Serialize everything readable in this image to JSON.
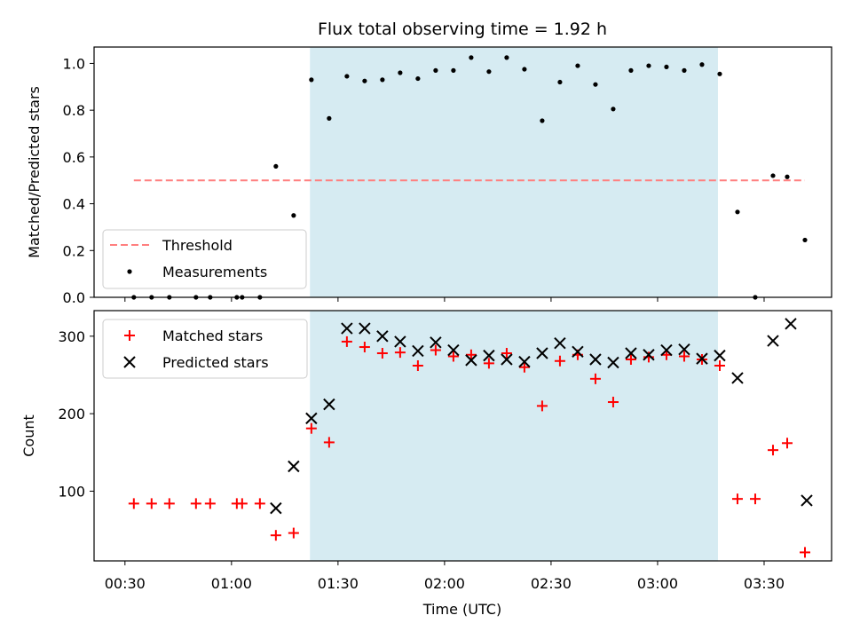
{
  "chart_data": {
    "type": "scatter",
    "title": "Flux total observing time = 1.92 h",
    "xlabel": "Time (UTC)",
    "x_ticks": [
      "00:30",
      "01:00",
      "01:30",
      "02:00",
      "02:30",
      "03:00",
      "03:30"
    ],
    "x_tick_minutes": [
      30,
      60,
      90,
      120,
      150,
      180,
      210
    ],
    "xlim_minutes": [
      21.3,
      229.0
    ],
    "shaded_span_minutes": [
      82.1,
      197.0
    ],
    "shade_color": "#add8e6",
    "panels": [
      {
        "name": "ratio",
        "ylabel": "Matched/Predicted stars",
        "ylim": [
          0.0,
          1.07
        ],
        "y_ticks": [
          0.0,
          0.2,
          0.4,
          0.6,
          0.8,
          1.0
        ],
        "y_tick_labels": [
          "0.0",
          "0.2",
          "0.4",
          "0.6",
          "0.8",
          "1.0"
        ],
        "legend": {
          "position": "lower left",
          "entries": [
            "Threshold",
            "Measurements"
          ]
        },
        "threshold": {
          "name": "Threshold",
          "y": 0.5,
          "x_range": [
            32.5,
            221.5
          ],
          "color": "#ff7f7f",
          "style": "dashed"
        },
        "series": [
          {
            "name": "Measurements",
            "marker": "dot",
            "color": "#000000",
            "x": [
              32.5,
              37.5,
              42.5,
              50.0,
              54.0,
              61.5,
              63.0,
              68.0,
              72.5,
              77.5,
              82.5,
              87.5,
              92.5,
              97.5,
              102.5,
              107.5,
              112.5,
              117.5,
              122.5,
              127.5,
              132.5,
              137.5,
              142.5,
              147.5,
              152.5,
              157.5,
              162.5,
              167.5,
              172.5,
              177.5,
              182.5,
              187.5,
              192.5,
              197.5,
              202.5,
              207.5,
              212.5,
              216.5,
              221.5
            ],
            "y": [
              0.0,
              0.0,
              0.0,
              0.0,
              0.0,
              0.0,
              0.0,
              0.0,
              0.56,
              0.35,
              0.93,
              0.765,
              0.945,
              0.925,
              0.93,
              0.96,
              0.935,
              0.97,
              0.97,
              1.025,
              0.965,
              1.025,
              0.975,
              0.755,
              0.92,
              0.99,
              0.91,
              0.805,
              0.97,
              0.99,
              0.985,
              0.97,
              0.995,
              0.955,
              0.365,
              0.0,
              0.52,
              0.515,
              0.245
            ]
          }
        ]
      },
      {
        "name": "count",
        "ylabel": "Count",
        "ylim": [
          10,
          333
        ],
        "y_ticks": [
          100,
          200,
          300
        ],
        "y_tick_labels": [
          "100",
          "200",
          "300"
        ],
        "legend": {
          "position": "upper left",
          "entries": [
            "Matched stars",
            "Predicted stars"
          ]
        },
        "series": [
          {
            "name": "Matched stars",
            "marker": "plus",
            "color": "#ff0000",
            "x": [
              32.5,
              37.5,
              42.5,
              50.0,
              54.0,
              61.5,
              63.0,
              68.0,
              72.5,
              77.5,
              82.5,
              87.5,
              92.5,
              97.5,
              102.5,
              107.5,
              112.5,
              117.5,
              122.5,
              127.5,
              132.5,
              137.5,
              142.5,
              147.5,
              152.5,
              157.5,
              162.5,
              167.5,
              172.5,
              177.5,
              182.5,
              187.5,
              192.5,
              197.5,
              202.5,
              207.5,
              212.5,
              216.5,
              221.5
            ],
            "y": [
              84,
              84,
              84,
              84,
              84,
              84,
              84,
              84,
              43,
              46,
              181,
              163,
              293,
              286,
              278,
              279,
              262,
              282,
              274,
              276,
              265,
              278,
              260,
              210,
              268,
              276,
              245,
              215,
              270,
              273,
              276,
              274,
              270,
              262,
              90,
              90,
              153,
              162,
              21
            ]
          },
          {
            "name": "Predicted stars",
            "marker": "x",
            "color": "#000000",
            "x": [
              72.5,
              77.5,
              82.5,
              87.5,
              92.5,
              97.5,
              102.5,
              107.5,
              112.5,
              117.5,
              122.5,
              127.5,
              132.5,
              137.5,
              142.5,
              147.5,
              152.5,
              157.5,
              162.5,
              167.5,
              172.5,
              177.5,
              182.5,
              187.5,
              192.5,
              197.5,
              202.5,
              212.5,
              217.5,
              222.0
            ],
            "y": [
              78,
              132,
              194,
              212,
              310,
              310,
              300,
              293,
              281,
              292,
              282,
              269,
              275,
              270,
              267,
              278,
              291,
              280,
              270,
              266,
              278,
              276,
              282,
              283,
              271,
              275,
              246,
              294,
              316,
              88
            ]
          }
        ]
      }
    ]
  }
}
